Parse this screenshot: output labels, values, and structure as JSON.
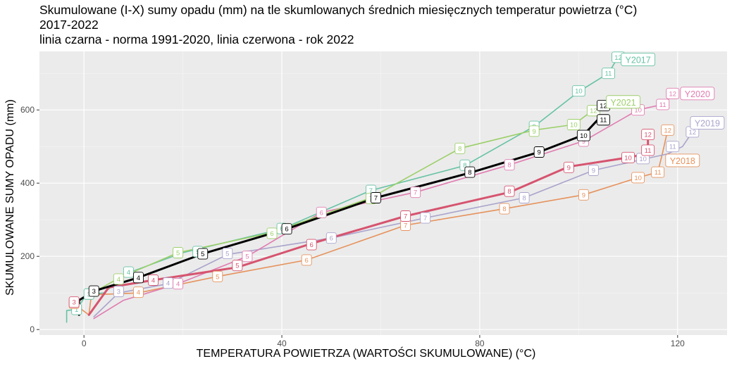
{
  "chart_data": {
    "type": "line",
    "title_lines": [
      "Skumulowane (I-X) sumy opadu (mm) na tle skumlowanych średnich miesięcznych temperatur powietrza (°C)",
      "2017-2022",
      "linia czarna - norma 1991-2020, linia czerwona - rok 2022"
    ],
    "xlabel": "TEMPERATURA POWIETRZA (WARTOŚCI SKUMULOWANE) (°C)",
    "ylabel": "SKUMULOWANE SUMY OPADU (mm)",
    "xlim": [
      -9,
      130
    ],
    "ylim": [
      -15,
      760
    ],
    "xticks": [
      0,
      40,
      80,
      120
    ],
    "yticks": [
      0,
      200,
      400,
      600
    ],
    "grid": true,
    "background": "#ebebeb",
    "series": [
      {
        "name": "Y2017",
        "label": "Y2017",
        "color": "#66c2a5",
        "width": 1.6,
        "points": [
          [
            -3.5,
            20
          ],
          [
            -3.5,
            52
          ],
          [
            -1.5,
            55
          ],
          [
            0.5,
            95
          ],
          [
            4,
            100
          ],
          [
            9,
            155
          ],
          [
            20,
            210
          ],
          [
            40,
            275
          ],
          [
            58,
            380
          ],
          [
            77,
            448
          ],
          [
            91,
            555
          ],
          [
            100,
            650
          ],
          [
            106,
            700
          ],
          [
            108,
            745
          ]
        ]
      },
      {
        "name": "Y2018",
        "label": "Y2018",
        "color": "#e6925c",
        "width": 1.6,
        "points": [
          [
            -2,
            70
          ],
          [
            1,
            40
          ],
          [
            1.5,
            95
          ],
          [
            11,
            100
          ],
          [
            27,
            145
          ],
          [
            45,
            190
          ],
          [
            65,
            285
          ],
          [
            85,
            330
          ],
          [
            101,
            368
          ],
          [
            112,
            415
          ],
          [
            116,
            430
          ],
          [
            117,
            485
          ],
          [
            118,
            545
          ]
        ]
      },
      {
        "name": "Y2019",
        "label": "Y2019",
        "color": "#a9a3cc",
        "width": 1.6,
        "points": [
          [
            2,
            35
          ],
          [
            7,
            100
          ],
          [
            17,
            125
          ],
          [
            29,
            205
          ],
          [
            50,
            250
          ],
          [
            69,
            305
          ],
          [
            89,
            360
          ],
          [
            103,
            435
          ],
          [
            113,
            465
          ],
          [
            118,
            480
          ],
          [
            121,
            500
          ],
          [
            123,
            540
          ]
        ]
      },
      {
        "name": "Y2020",
        "label": "Y2020",
        "color": "#e07bb0",
        "width": 1.6,
        "points": [
          [
            2,
            30
          ],
          [
            8,
            80
          ],
          [
            19,
            125
          ],
          [
            33,
            200
          ],
          [
            48,
            320
          ],
          [
            67,
            375
          ],
          [
            86,
            450
          ],
          [
            101,
            515
          ],
          [
            112,
            600
          ],
          [
            117,
            615
          ],
          [
            119,
            640
          ]
        ]
      },
      {
        "name": "Y2021",
        "label": "Y2021",
        "color": "#9ccf6a",
        "width": 1.6,
        "points": [
          [
            -1,
            80
          ],
          [
            1,
            95
          ],
          [
            7,
            140
          ],
          [
            19,
            210
          ],
          [
            38,
            265
          ],
          [
            58,
            360
          ],
          [
            76,
            495
          ],
          [
            91,
            545
          ],
          [
            99,
            560
          ],
          [
            103,
            600
          ],
          [
            106,
            620
          ],
          [
            108,
            628
          ]
        ]
      },
      {
        "name": "Y2022",
        "label": "",
        "color": "#d6546f",
        "width": 3,
        "points": [
          [
            1,
            40
          ],
          [
            5,
            115
          ],
          [
            14,
            135
          ],
          [
            31,
            170
          ],
          [
            46,
            235
          ],
          [
            65,
            310
          ],
          [
            86,
            375
          ],
          [
            98,
            445
          ],
          [
            110,
            470
          ],
          [
            113,
            478
          ],
          [
            114,
            488
          ],
          [
            114,
            520
          ]
        ]
      },
      {
        "name": "norma 1991-2020",
        "label": "",
        "color": "#000000",
        "width": 3,
        "points": [
          [
            -1,
            40
          ],
          [
            -1,
            80
          ],
          [
            2,
            105
          ],
          [
            11,
            142
          ],
          [
            24,
            207
          ],
          [
            41,
            275
          ],
          [
            59,
            360
          ],
          [
            78,
            428
          ],
          [
            92,
            485
          ],
          [
            101,
            532
          ],
          [
            104,
            575
          ],
          [
            104,
            615
          ]
        ]
      }
    ],
    "labels": [
      {
        "series": 0,
        "points": [
          [
            -1.5,
            55,
            "1"
          ],
          [
            1,
            97,
            "3"
          ],
          [
            9,
            157,
            "4"
          ],
          [
            23,
            213,
            "5"
          ],
          [
            40,
            276,
            "6"
          ],
          [
            58,
            380,
            "7"
          ],
          [
            77,
            449,
            "8"
          ],
          [
            91,
            555,
            "9"
          ],
          [
            100,
            652,
            "10"
          ],
          [
            106,
            700,
            "11"
          ],
          [
            108,
            744,
            "12"
          ]
        ]
      },
      {
        "series": 1,
        "points": [
          [
            -2,
            72,
            "3"
          ],
          [
            11,
            102,
            "4"
          ],
          [
            27,
            145,
            "5"
          ],
          [
            45,
            190,
            "6"
          ],
          [
            65,
            285,
            "7"
          ],
          [
            85,
            330,
            "8"
          ],
          [
            101,
            368,
            "9"
          ],
          [
            112,
            415,
            "10"
          ],
          [
            116,
            430,
            "11"
          ],
          [
            118,
            545,
            "12"
          ]
        ]
      },
      {
        "series": 2,
        "points": [
          [
            7,
            104,
            "3"
          ],
          [
            17,
            127,
            "4"
          ],
          [
            29,
            208,
            "5"
          ],
          [
            50,
            250,
            "6"
          ],
          [
            69,
            305,
            "7"
          ],
          [
            89,
            360,
            "8"
          ],
          [
            103,
            435,
            "9"
          ],
          [
            113,
            467,
            "10"
          ],
          [
            119,
            500,
            "11"
          ],
          [
            123,
            540,
            "12"
          ]
        ]
      },
      {
        "series": 3,
        "points": [
          [
            19,
            125,
            "4"
          ],
          [
            33,
            200,
            "5"
          ],
          [
            48,
            320,
            "6"
          ],
          [
            67,
            375,
            "7"
          ],
          [
            86,
            450,
            "8"
          ],
          [
            101,
            515,
            "9"
          ],
          [
            112,
            600,
            "10"
          ],
          [
            117,
            615,
            "11"
          ],
          [
            119,
            645,
            "12"
          ]
        ]
      },
      {
        "series": 4,
        "points": [
          [
            7,
            138,
            "4"
          ],
          [
            19,
            210,
            "5"
          ],
          [
            38,
            263,
            "6"
          ],
          [
            58,
            358,
            "7"
          ],
          [
            76,
            495,
            "8"
          ],
          [
            91,
            542,
            "9"
          ],
          [
            99,
            560,
            "10"
          ],
          [
            103,
            598,
            "12"
          ]
        ]
      },
      {
        "series": 5,
        "points": [
          [
            -2,
            75,
            "3"
          ],
          [
            14,
            135,
            "4"
          ],
          [
            31,
            175,
            "5"
          ],
          [
            46,
            232,
            "6"
          ],
          [
            65,
            310,
            "7"
          ],
          [
            86,
            378,
            "8"
          ],
          [
            98,
            443,
            "9"
          ],
          [
            110,
            470,
            "10"
          ],
          [
            114,
            490,
            "11"
          ],
          [
            114,
            533,
            "12"
          ]
        ]
      },
      {
        "series": 6,
        "points": [
          [
            2,
            105,
            "3"
          ],
          [
            11,
            142,
            "4"
          ],
          [
            24,
            207,
            "5"
          ],
          [
            41,
            275,
            "6"
          ],
          [
            59,
            360,
            "7"
          ],
          [
            78,
            430,
            "8"
          ],
          [
            92,
            485,
            "9"
          ],
          [
            101,
            530,
            "10"
          ],
          [
            105,
            573,
            "11"
          ],
          [
            105,
            612,
            "12"
          ]
        ]
      }
    ],
    "series_labels": [
      {
        "text": "Y2017",
        "x": 112,
        "y": 738,
        "color": "#66c2a5"
      },
      {
        "text": "Y2021",
        "x": 109,
        "y": 622,
        "color": "#9ccf6a"
      },
      {
        "text": "Y2020",
        "x": 124,
        "y": 645,
        "color": "#e07bb0"
      },
      {
        "text": "Y2019",
        "x": 126,
        "y": 565,
        "color": "#a9a3cc"
      },
      {
        "text": "Y2018",
        "x": 121,
        "y": 462,
        "color": "#e6925c"
      }
    ]
  }
}
